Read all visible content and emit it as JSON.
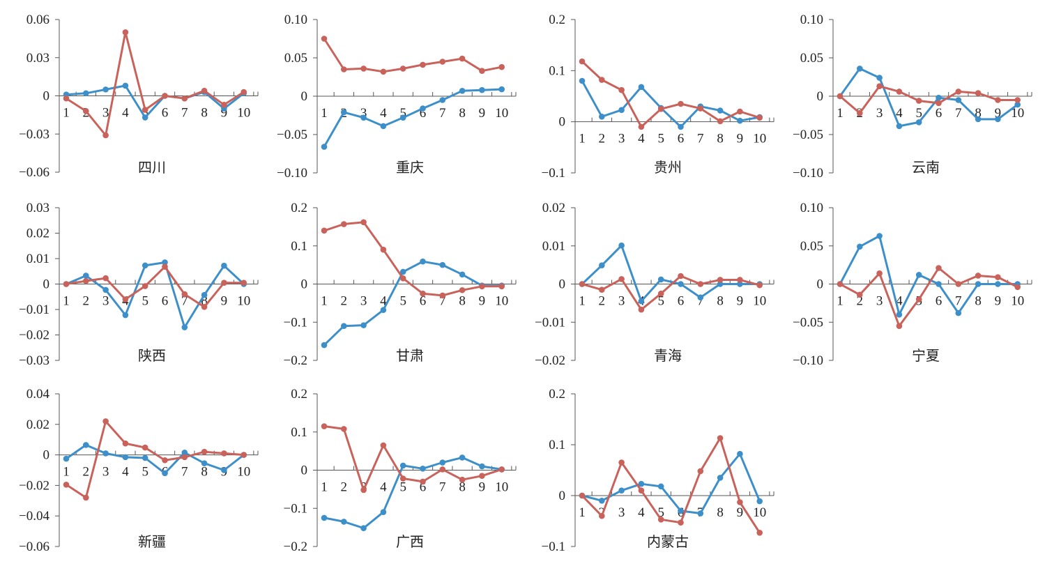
{
  "colors": {
    "series_a": "#3d8fc9",
    "series_b": "#c8625a",
    "axis": "#555555"
  },
  "chart_data": [
    {
      "type": "line",
      "title": "四川",
      "ylim": [
        -0.06,
        0.06
      ],
      "yticks": [
        0.06,
        0.03,
        0,
        -0.03,
        -0.06
      ],
      "ytick_labels": [
        "0.06",
        "0.03",
        "0",
        "−0.03",
        "−0.06"
      ],
      "x": [
        1,
        2,
        3,
        4,
        5,
        6,
        7,
        8,
        9,
        10
      ],
      "series": [
        {
          "values": [
            0.001,
            0.002,
            0.005,
            0.008,
            -0.017,
            0,
            -0.002,
            0.003,
            -0.01,
            0.002
          ]
        },
        {
          "values": [
            -0.002,
            -0.012,
            -0.031,
            0.05,
            -0.011,
            0,
            -0.002,
            0.004,
            -0.007,
            0.003
          ]
        }
      ]
    },
    {
      "type": "line",
      "title": "重庆",
      "ylim": [
        -0.1,
        0.1
      ],
      "yticks": [
        0.1,
        0.05,
        0,
        -0.05,
        -0.1
      ],
      "ytick_labels": [
        "0.10",
        "0.05",
        "0",
        "−0.05",
        "−0.10"
      ],
      "x": [
        1,
        2,
        3,
        4,
        5,
        6,
        7,
        8,
        9,
        10
      ],
      "series": [
        {
          "values": [
            -0.066,
            -0.021,
            -0.028,
            -0.039,
            -0.028,
            -0.016,
            -0.005,
            0.007,
            0.008,
            0.009
          ]
        },
        {
          "values": [
            0.075,
            0.035,
            0.036,
            0.032,
            0.036,
            0.041,
            0.045,
            0.049,
            0.033,
            0.038
          ]
        }
      ]
    },
    {
      "type": "line",
      "title": "贵州",
      "ylim": [
        -0.1,
        0.2
      ],
      "yticks": [
        0.2,
        0.1,
        0,
        -0.1
      ],
      "ytick_labels": [
        "0.2",
        "0.1",
        "0",
        "−0.1"
      ],
      "x": [
        1,
        2,
        3,
        4,
        5,
        6,
        7,
        8,
        9,
        10
      ],
      "series": [
        {
          "values": [
            0.08,
            0.01,
            0.023,
            0.068,
            0.027,
            -0.01,
            0.03,
            0.022,
            0.002,
            0.009
          ]
        },
        {
          "values": [
            0.118,
            0.082,
            0.062,
            -0.01,
            0.025,
            0.035,
            0.026,
            0.001,
            0.02,
            0.008
          ]
        }
      ]
    },
    {
      "type": "line",
      "title": "云南",
      "ylim": [
        -0.1,
        0.1
      ],
      "yticks": [
        0.1,
        0.05,
        0,
        -0.05,
        -0.1
      ],
      "ytick_labels": [
        "0.10",
        "0.05",
        "0",
        "−0.05",
        "−0.10"
      ],
      "x": [
        1,
        2,
        3,
        4,
        5,
        6,
        7,
        8,
        9,
        10
      ],
      "series": [
        {
          "values": [
            0,
            0.036,
            0.024,
            -0.039,
            -0.034,
            -0.002,
            -0.005,
            -0.03,
            -0.03,
            -0.011
          ]
        },
        {
          "values": [
            0,
            -0.022,
            0.013,
            0.006,
            -0.006,
            -0.009,
            0.006,
            0.004,
            -0.005,
            -0.005
          ]
        }
      ]
    },
    {
      "type": "line",
      "title": "陕西",
      "ylim": [
        -0.03,
        0.03
      ],
      "yticks": [
        0.03,
        0.02,
        0.01,
        0,
        -0.01,
        -0.02,
        -0.03
      ],
      "ytick_labels": [
        "0.03",
        "0.02",
        "0.01",
        "0",
        "−0.01",
        "−0.02",
        "−0.03"
      ],
      "x": [
        1,
        2,
        3,
        4,
        5,
        6,
        7,
        8,
        9,
        10
      ],
      "series": [
        {
          "values": [
            0,
            0.0033,
            -0.0023,
            -0.0122,
            0.0073,
            0.0085,
            -0.017,
            -0.0043,
            0.0072,
            0
          ]
        },
        {
          "values": [
            0,
            0.0012,
            0.0023,
            -0.006,
            -0.0008,
            0.0068,
            -0.004,
            -0.009,
            0.0005,
            0.0005
          ]
        }
      ]
    },
    {
      "type": "line",
      "title": "甘肃",
      "ylim": [
        -0.2,
        0.2
      ],
      "yticks": [
        0.2,
        0.1,
        0,
        -0.1,
        -0.2
      ],
      "ytick_labels": [
        "0.2",
        "0.1",
        "0",
        "−0.1",
        "−0.2"
      ],
      "x": [
        1,
        2,
        3,
        4,
        5,
        6,
        7,
        8,
        9,
        10
      ],
      "series": [
        {
          "values": [
            -0.16,
            -0.11,
            -0.108,
            -0.068,
            0.032,
            0.059,
            0.05,
            0.025,
            -0.004,
            -0.004
          ]
        },
        {
          "values": [
            0.14,
            0.157,
            0.162,
            0.09,
            0.015,
            -0.025,
            -0.03,
            -0.016,
            -0.006,
            -0.006
          ]
        }
      ]
    },
    {
      "type": "line",
      "title": "青海",
      "ylim": [
        -0.02,
        0.02
      ],
      "yticks": [
        0.02,
        0.01,
        0,
        -0.01,
        -0.02
      ],
      "ytick_labels": [
        "0.02",
        "0.01",
        "0",
        "−0.01",
        "−0.02"
      ],
      "x": [
        1,
        2,
        3,
        4,
        5,
        6,
        7,
        8,
        9,
        10
      ],
      "series": [
        {
          "values": [
            0,
            0.0049,
            0.0101,
            -0.0045,
            0.0012,
            0,
            -0.0035,
            0,
            0,
            0
          ]
        },
        {
          "values": [
            0,
            -0.0015,
            0.0013,
            -0.0067,
            -0.0025,
            0.0021,
            0,
            0.0011,
            0.0011,
            -0.0003
          ]
        }
      ]
    },
    {
      "type": "line",
      "title": "宁夏",
      "ylim": [
        -0.1,
        0.1
      ],
      "yticks": [
        0.1,
        0.05,
        0,
        -0.05,
        -0.1
      ],
      "ytick_labels": [
        "0.10",
        "0.05",
        "0",
        "−0.05",
        "−0.10"
      ],
      "x": [
        1,
        2,
        3,
        4,
        5,
        6,
        7,
        8,
        9,
        10
      ],
      "series": [
        {
          "values": [
            0,
            0.049,
            0.063,
            -0.04,
            0.012,
            0,
            -0.038,
            0,
            0,
            0
          ]
        },
        {
          "values": [
            0,
            -0.014,
            0.014,
            -0.055,
            -0.02,
            0.021,
            0,
            0.011,
            0.009,
            -0.004
          ]
        }
      ]
    },
    {
      "type": "line",
      "title": "新疆",
      "ylim": [
        -0.06,
        0.04
      ],
      "yticks": [
        0.04,
        0.02,
        0,
        -0.02,
        -0.04,
        -0.06
      ],
      "ytick_labels": [
        "0.04",
        "0.02",
        "0",
        "−0.02",
        "−0.04",
        "−0.06"
      ],
      "x": [
        1,
        2,
        3,
        4,
        5,
        6,
        7,
        8,
        9,
        10
      ],
      "series": [
        {
          "values": [
            -0.0025,
            0.0065,
            0.001,
            -0.0015,
            -0.002,
            -0.012,
            0.0015,
            -0.0055,
            -0.01,
            0
          ]
        },
        {
          "values": [
            -0.0195,
            -0.028,
            0.022,
            0.0075,
            0.0048,
            -0.0035,
            -0.0015,
            0.002,
            0.001,
            0
          ]
        }
      ]
    },
    {
      "type": "line",
      "title": "广西",
      "ylim": [
        -0.2,
        0.2
      ],
      "yticks": [
        0.2,
        0.1,
        0,
        -0.1,
        -0.2
      ],
      "ytick_labels": [
        "0.2",
        "0.1",
        "0",
        "−0.1",
        "−0.2"
      ],
      "x": [
        1,
        2,
        3,
        4,
        5,
        6,
        7,
        8,
        9,
        10
      ],
      "series": [
        {
          "values": [
            -0.125,
            -0.135,
            -0.152,
            -0.11,
            0.012,
            0.004,
            0.02,
            0.033,
            0.01,
            0.002
          ]
        },
        {
          "values": [
            0.115,
            0.108,
            -0.052,
            0.065,
            -0.022,
            -0.03,
            0.002,
            -0.025,
            -0.015,
            0.002
          ]
        }
      ]
    },
    {
      "type": "line",
      "title": "内蒙古",
      "ylim": [
        -0.1,
        0.2
      ],
      "yticks": [
        0.2,
        0.1,
        0,
        -0.1
      ],
      "ytick_labels": [
        "0.2",
        "0.1",
        "0",
        "−0.1"
      ],
      "x": [
        1,
        2,
        3,
        4,
        5,
        6,
        7,
        8,
        9,
        10
      ],
      "series": [
        {
          "values": [
            0,
            -0.01,
            0.01,
            0.023,
            0.018,
            -0.03,
            -0.035,
            0.035,
            0.082,
            -0.011
          ]
        },
        {
          "values": [
            0,
            -0.04,
            0.065,
            0.01,
            -0.047,
            -0.053,
            0.048,
            0.113,
            -0.013,
            -0.073
          ]
        }
      ]
    }
  ]
}
